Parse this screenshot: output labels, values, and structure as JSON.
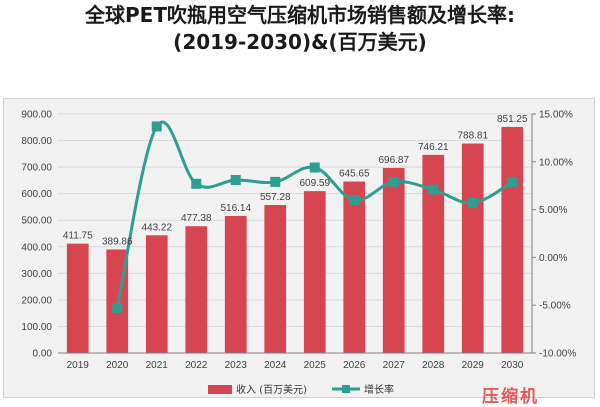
{
  "title": {
    "line1": "全球PET吹瓶用空气压缩机市场销售额及增长率:",
    "line2": "(2019-2030)&(百万美元)"
  },
  "watermark": "压缩机",
  "colors": {
    "bar": "#d64550",
    "line": "#2e9e91",
    "grid": "#d9d9d9",
    "plot_bg": "#f2f2f2"
  },
  "chart_data": {
    "type": "bar",
    "categories": [
      "2019",
      "2020",
      "2021",
      "2022",
      "2023",
      "2024",
      "2025",
      "2026",
      "2027",
      "2028",
      "2029",
      "2030"
    ],
    "series": [
      {
        "name": "收入 (百万美元)",
        "type": "bar",
        "axis": "left",
        "values": [
          411.75,
          389.86,
          443.22,
          477.38,
          516.14,
          557.28,
          609.59,
          645.65,
          696.87,
          746.21,
          788.81,
          851.25
        ],
        "labels": [
          "411.75",
          "389.86",
          "443.22",
          "477.38",
          "516.14",
          "557.28",
          "609.59",
          "645.65",
          "696.87",
          "746.21",
          "788.81",
          "851.25"
        ]
      },
      {
        "name": "增长率",
        "type": "line",
        "axis": "right",
        "values": [
          null,
          -5.3,
          13.7,
          7.7,
          8.1,
          7.9,
          9.4,
          6.0,
          7.9,
          7.1,
          5.7,
          7.9
        ]
      }
    ],
    "ylim_left": [
      0,
      900
    ],
    "yticks_left": [
      "0.00",
      "100.00",
      "200.00",
      "300.00",
      "400.00",
      "500.00",
      "600.00",
      "700.00",
      "800.00",
      "900.00"
    ],
    "ylim_right": [
      -10,
      15
    ],
    "yticks_right": [
      "-10.00%",
      "-5.00%",
      "0.00%",
      "5.00%",
      "10.00%",
      "15.00%"
    ],
    "grid": true,
    "legend_position": "bottom"
  }
}
